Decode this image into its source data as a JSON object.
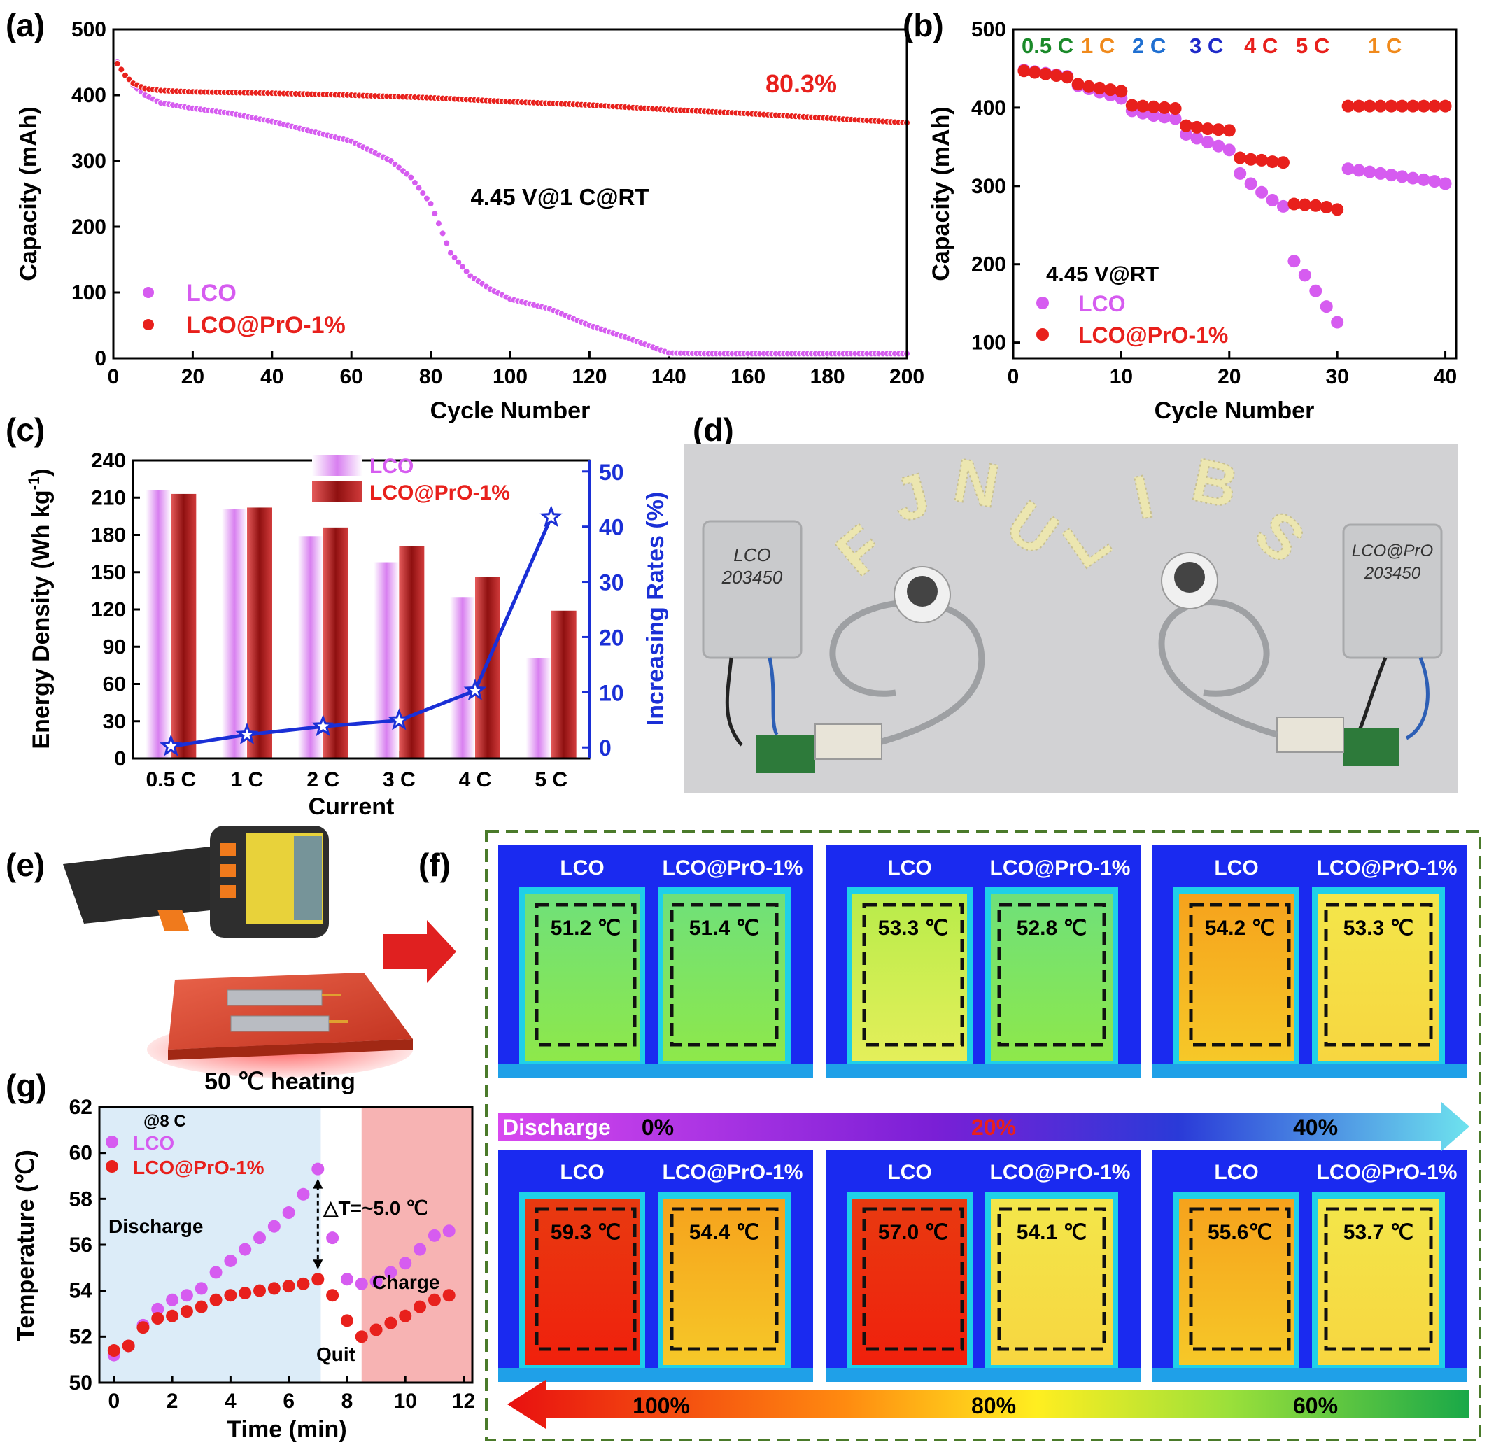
{
  "panels": {
    "a": "(a)",
    "b": "(b)",
    "c": "(c)",
    "d": "(d)",
    "e": "(e)",
    "f": "(f)",
    "g": "(g)"
  },
  "chart_data": [
    {
      "id": "a",
      "type": "scatter",
      "xlabel": "Cycle Number",
      "ylabel": "Capacity (mAh)",
      "xlim": [
        0,
        200
      ],
      "ylim": [
        0,
        500
      ],
      "xticks": [
        0,
        20,
        40,
        60,
        80,
        100,
        120,
        140,
        160,
        180,
        200
      ],
      "yticks": [
        0,
        100,
        200,
        300,
        400,
        500
      ],
      "legend_position": "bottom-left",
      "annotations": [
        "80.3%",
        "4.45 V@1 C@RT"
      ],
      "series": [
        {
          "name": "LCO",
          "color": "#d65cf0",
          "x": [
            1,
            3,
            5,
            8,
            12,
            20,
            30,
            40,
            50,
            60,
            70,
            75,
            80,
            85,
            90,
            95,
            100,
            110,
            120,
            130,
            140,
            150,
            160,
            170,
            180,
            190,
            200
          ],
          "y": [
            450,
            430,
            415,
            400,
            388,
            380,
            372,
            360,
            345,
            330,
            300,
            275,
            235,
            160,
            125,
            105,
            90,
            75,
            50,
            30,
            8,
            7,
            7,
            7,
            7,
            7,
            7
          ]
        },
        {
          "name": "LCO@PrO-1%",
          "color": "#e8201c",
          "x": [
            1,
            3,
            5,
            8,
            12,
            20,
            40,
            60,
            80,
            100,
            120,
            140,
            160,
            180,
            200
          ],
          "y": [
            448,
            430,
            418,
            410,
            407,
            405,
            403,
            400,
            396,
            390,
            385,
            378,
            372,
            365,
            358
          ]
        }
      ]
    },
    {
      "id": "b",
      "type": "scatter",
      "xlabel": "Cycle Number",
      "ylabel": "Capacity (mAh)",
      "xlim": [
        0,
        41
      ],
      "ylim": [
        80,
        500
      ],
      "xticks": [
        0,
        10,
        20,
        30,
        40
      ],
      "yticks": [
        100,
        200,
        300,
        400,
        500
      ],
      "rate_labels": [
        {
          "text": "0.5 C",
          "color": "#1b8a2a"
        },
        {
          "text": "1 C",
          "color": "#f08a1c"
        },
        {
          "text": "2 C",
          "color": "#1f6fd1"
        },
        {
          "text": "3 C",
          "color": "#1f2ac9"
        },
        {
          "text": "4 C",
          "color": "#e8201c"
        },
        {
          "text": "5 C",
          "color": "#e8201c"
        },
        {
          "text": "1 C",
          "color": "#f08a1c"
        }
      ],
      "annotations": [
        "4.45 V@RT"
      ],
      "series": [
        {
          "name": "LCO",
          "color": "#d65cf0",
          "x": [
            1,
            2,
            3,
            4,
            5,
            6,
            7,
            8,
            9,
            10,
            11,
            12,
            13,
            14,
            15,
            16,
            17,
            18,
            19,
            20,
            21,
            22,
            23,
            24,
            25,
            26,
            27,
            28,
            29,
            30,
            31,
            32,
            33,
            34,
            35,
            36,
            37,
            38,
            39,
            40
          ],
          "y": [
            448,
            446,
            444,
            442,
            440,
            428,
            424,
            420,
            416,
            412,
            396,
            393,
            390,
            388,
            386,
            366,
            361,
            356,
            351,
            346,
            316,
            303,
            292,
            282,
            274,
            204,
            186,
            166,
            146,
            126,
            322,
            320,
            318,
            316,
            314,
            312,
            310,
            308,
            306,
            303
          ]
        },
        {
          "name": "LCO@PrO-1%",
          "color": "#e8201c",
          "x": [
            1,
            2,
            3,
            4,
            5,
            6,
            7,
            8,
            9,
            10,
            11,
            12,
            13,
            14,
            15,
            16,
            17,
            18,
            19,
            20,
            21,
            22,
            23,
            24,
            25,
            26,
            27,
            28,
            29,
            30,
            31,
            32,
            33,
            34,
            35,
            36,
            37,
            38,
            39,
            40
          ],
          "y": [
            447,
            445,
            443,
            441,
            439,
            430,
            427,
            425,
            423,
            421,
            403,
            402,
            401,
            400,
            399,
            377,
            375,
            373,
            372,
            371,
            336,
            334,
            333,
            331,
            330,
            277,
            276,
            275,
            273,
            270,
            402,
            402,
            402,
            402,
            402,
            402,
            402,
            402,
            402,
            402
          ]
        }
      ]
    },
    {
      "id": "c",
      "type": "bar",
      "xlabel": "Current",
      "ylabel": "Energy Density (Wh kg",
      "ylabel_sup": "-1",
      "ylabel_tail": ")",
      "ylabel_right": "Increasing Rates (%)",
      "categories": [
        "0.5 C",
        "1 C",
        "2 C",
        "3 C",
        "4 C",
        "5 C"
      ],
      "ylim": [
        0,
        240
      ],
      "yticks": [
        0,
        30,
        60,
        90,
        120,
        150,
        180,
        210,
        240
      ],
      "ylim_right": [
        -2,
        52
      ],
      "yticks_right": [
        0,
        10,
        20,
        30,
        40,
        50
      ],
      "legend_position": "top-right",
      "series": [
        {
          "name": "LCO",
          "color": "#e6a0f5",
          "values": [
            216,
            201,
            179,
            158,
            130,
            81
          ]
        },
        {
          "name": "LCO@PrO-1%",
          "color": "#b32222",
          "values": [
            213,
            202,
            186,
            171,
            146,
            119
          ]
        }
      ],
      "line": {
        "color": "#1a2fd6",
        "values": [
          0.2,
          2.3,
          3.8,
          4.9,
          10.3,
          41.7
        ]
      }
    },
    {
      "id": "g",
      "type": "scatter",
      "xlabel": "Time (min)",
      "ylabel": "Temperature (℃)",
      "xlim": [
        -0.5,
        12.3
      ],
      "ylim": [
        50,
        62
      ],
      "xticks": [
        0,
        2,
        4,
        6,
        8,
        10,
        12
      ],
      "yticks": [
        50,
        52,
        54,
        56,
        58,
        60,
        62
      ],
      "legend_title": "@8 C",
      "regions": [
        {
          "label": "Discharge",
          "color": "#dcecf8",
          "from": -0.5,
          "to": 7.1
        },
        {
          "label": "Quit",
          "color": "#ffffff",
          "from": 7.1,
          "to": 8.5
        },
        {
          "label": "Charge",
          "color": "#f7b3b3",
          "from": 8.5,
          "to": 12.3
        }
      ],
      "annotation": "△T=~5.0 ℃",
      "series": [
        {
          "name": "LCO",
          "color": "#d65cf0",
          "x": [
            0,
            0.5,
            1,
            1.5,
            2,
            2.5,
            3,
            3.5,
            4,
            4.5,
            5,
            5.5,
            6,
            6.5,
            7,
            7.5,
            8,
            8.5,
            9,
            9.5,
            10,
            10.5,
            11,
            11.5
          ],
          "y": [
            51.2,
            51.6,
            52.5,
            53.2,
            53.6,
            53.8,
            54.1,
            54.8,
            55.3,
            55.8,
            56.3,
            56.8,
            57.4,
            58.2,
            59.3,
            56.3,
            54.5,
            54.3,
            54.4,
            54.8,
            55.2,
            55.8,
            56.4,
            56.6
          ]
        },
        {
          "name": "LCO@PrO-1%",
          "color": "#e8201c",
          "x": [
            0,
            0.5,
            1,
            1.5,
            2,
            2.5,
            3,
            3.5,
            4,
            4.5,
            5,
            5.5,
            6,
            6.5,
            7,
            7.5,
            8,
            8.5,
            9,
            9.5,
            10,
            10.5,
            11,
            11.5
          ],
          "y": [
            51.4,
            51.6,
            52.4,
            52.8,
            52.9,
            53.1,
            53.3,
            53.6,
            53.8,
            53.9,
            54.0,
            54.1,
            54.2,
            54.3,
            54.5,
            53.8,
            52.7,
            52.0,
            52.3,
            52.6,
            52.9,
            53.3,
            53.6,
            53.8
          ]
        }
      ]
    }
  ],
  "photo_d": {
    "cell_left_label": [
      "LCO",
      "203450"
    ],
    "cell_right_label": [
      "LCO@PrO",
      "203450"
    ],
    "led_letters_left": [
      "F",
      "J",
      "N",
      "U"
    ],
    "led_letters_right": [
      "L",
      "I",
      "B",
      "S"
    ]
  },
  "panel_e": {
    "caption": "50 ℃ heating"
  },
  "panel_f": {
    "row_top": [
      {
        "left": "LCO",
        "right": "LCO@PrO-1%",
        "t_left": "51.2 ℃",
        "t_right": "51.4 ℃"
      },
      {
        "left": "LCO",
        "right": "LCO@PrO-1%",
        "t_left": "53.3 ℃",
        "t_right": "52.8 ℃"
      },
      {
        "left": "LCO",
        "right": "LCO@PrO-1%",
        "t_left": "54.2 ℃",
        "t_right": "53.3 ℃"
      }
    ],
    "arrow_top": {
      "label": "Discharge",
      "marks": [
        "0%",
        "20%",
        "40%"
      ]
    },
    "row_bottom": [
      {
        "left": "LCO",
        "right": "LCO@PrO-1%",
        "t_left": "59.3 ℃",
        "t_right": "54.4 ℃"
      },
      {
        "left": "LCO",
        "right": "LCO@PrO-1%",
        "t_left": "57.0 ℃",
        "t_right": "54.1 ℃"
      },
      {
        "left": "LCO",
        "right": "LCO@PrO-1%",
        "t_left": "55.6℃",
        "t_right": "53.7 ℃"
      }
    ],
    "arrow_bottom": {
      "marks": [
        "100%",
        "80%",
        "60%"
      ]
    }
  }
}
